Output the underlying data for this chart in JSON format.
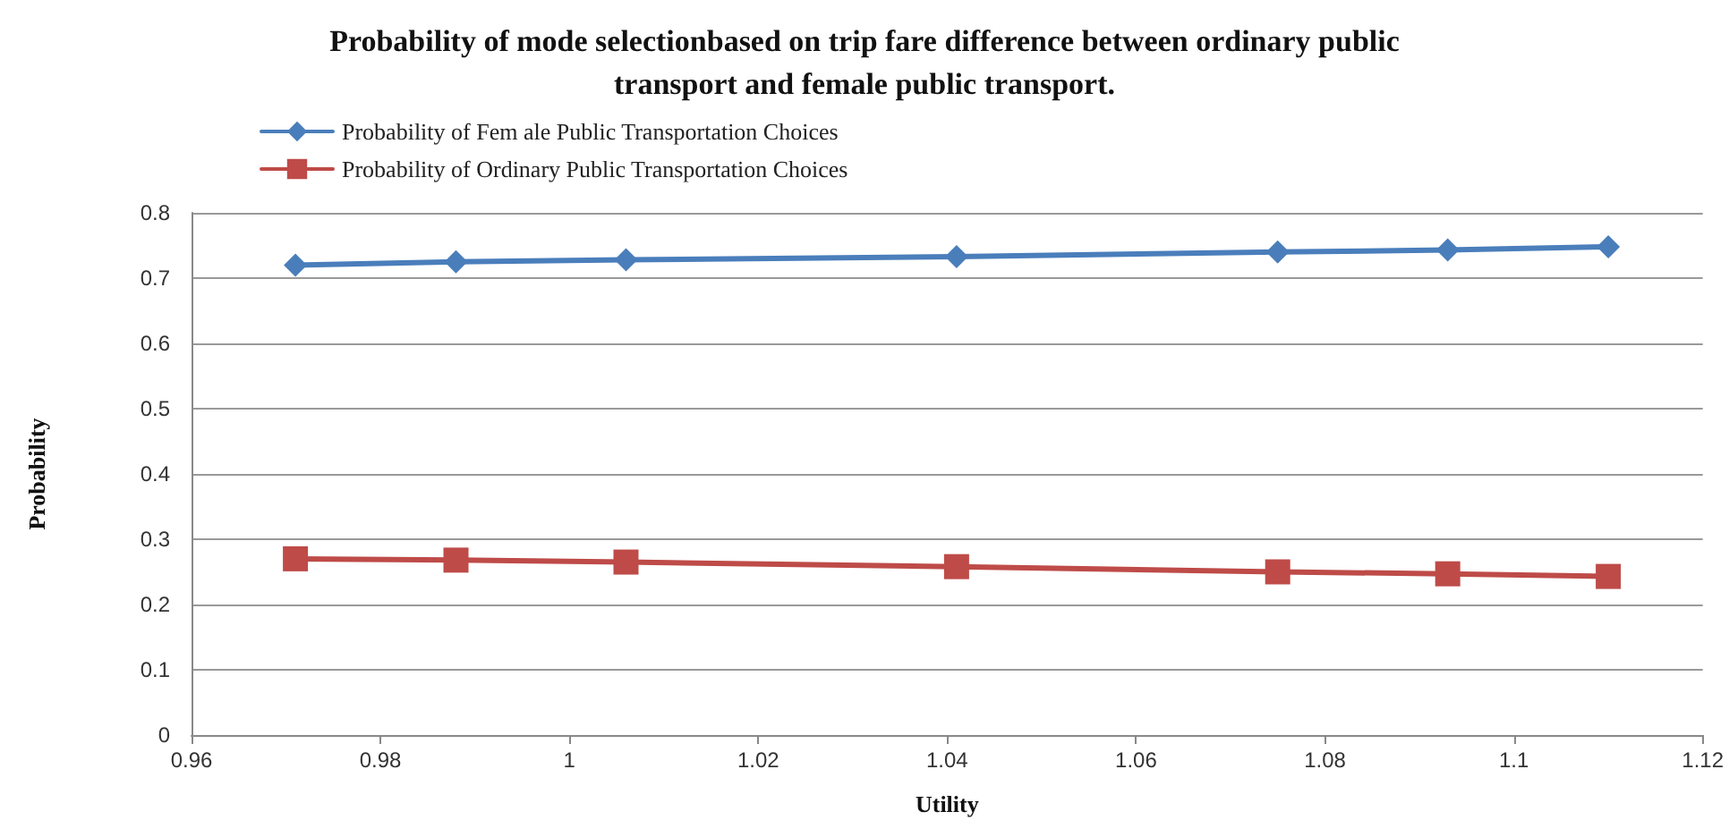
{
  "chart_data": {
    "type": "line",
    "title": "Probability of mode selectionbased on trip fare difference between ordinary public\ntransport and female public transport.",
    "xlabel": "Utility",
    "ylabel": "Probability",
    "x": [
      0.971,
      0.988,
      1.006,
      1.041,
      1.075,
      1.093,
      1.11
    ],
    "series": [
      {
        "name": "Probability of Fem ale Public Transportation Choices",
        "color": "#4a7ebb",
        "marker": "diamond",
        "values": [
          0.72,
          0.725,
          0.728,
          0.733,
          0.74,
          0.743,
          0.748
        ]
      },
      {
        "name": "Probability of Ordinary Public Transportation Choices",
        "color": "#be4b48",
        "marker": "square",
        "values": [
          0.27,
          0.268,
          0.265,
          0.258,
          0.25,
          0.247,
          0.243
        ]
      }
    ],
    "xlim": [
      0.96,
      1.12
    ],
    "xticks": [
      0.96,
      0.98,
      1,
      1.02,
      1.04,
      1.06,
      1.08,
      1.1,
      1.12
    ],
    "ylim": [
      0,
      0.8
    ],
    "yticks": [
      0,
      0.1,
      0.2,
      0.3,
      0.4,
      0.5,
      0.6,
      0.7,
      0.8
    ],
    "grid": "y",
    "legend": "top left",
    "line_style": "solid"
  }
}
